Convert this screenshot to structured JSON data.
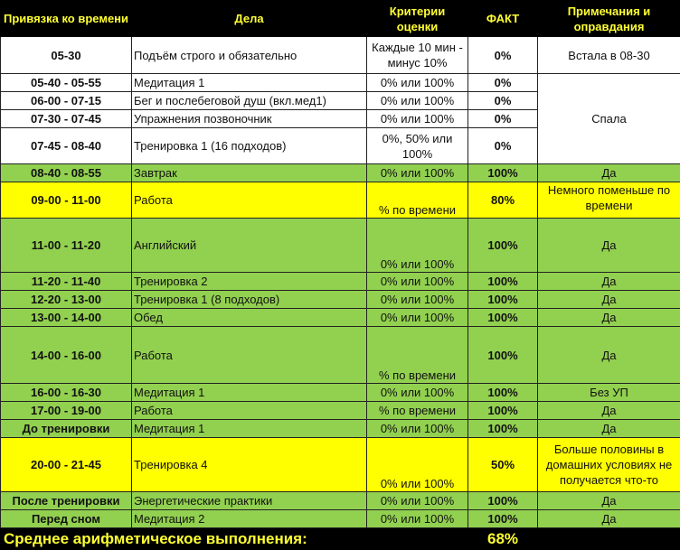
{
  "headers": {
    "time": "Привязка ко времени",
    "task": "Дела",
    "criteria": "Критерии оценки",
    "fact": "ФАКТ",
    "note": "Примечания и оправдания"
  },
  "colors": {
    "header_bg": "#000000",
    "header_text": "#ffff33",
    "green": "#92d050",
    "yellow": "#ffff00",
    "white": "#ffffff"
  },
  "rows": [
    {
      "time": "05-30",
      "task": "Подъём строго и обязательно",
      "criteria": "Каждые 10 мин - минус 10%",
      "fact": "0%",
      "note": "Встала в 08-30",
      "color": "white"
    },
    {
      "time": "05-40 - 05-55",
      "task": "Медитация 1",
      "criteria": "0% или 100%",
      "fact": "0%",
      "note": "Спала",
      "color": "white"
    },
    {
      "time": "06-00 - 07-15",
      "task": "Бег и послебеговой душ (вкл.мед1)",
      "criteria": "0% или 100%",
      "fact": "0%",
      "note": "",
      "color": "white"
    },
    {
      "time": "07-30 - 07-45",
      "task": "Упражнения позвоночник",
      "criteria": "0% или 100%",
      "fact": "0%",
      "note": "",
      "color": "white"
    },
    {
      "time": "07-45 - 08-40",
      "task": "Тренировка 1 (16 подходов)",
      "criteria": "0%, 50% или 100%",
      "fact": "0%",
      "note": "",
      "color": "white"
    },
    {
      "time": "08-40 - 08-55",
      "task": "Завтрак",
      "criteria": "0% или 100%",
      "fact": "100%",
      "note": "Да",
      "color": "green"
    },
    {
      "time": "09-00 - 11-00",
      "task": "Работа",
      "criteria": "% по времени",
      "fact": "80%",
      "note": "Немного поменьше по времени",
      "color": "yellow"
    },
    {
      "time": "11-00 - 11-20",
      "task": "Английский",
      "criteria": "0% или 100%",
      "fact": "100%",
      "note": "Да",
      "color": "green"
    },
    {
      "time": "11-20 - 11-40",
      "task": "Тренировка 2",
      "criteria": "0% или 100%",
      "fact": "100%",
      "note": "Да",
      "color": "green"
    },
    {
      "time": "12-20 - 13-00",
      "task": "Тренировка 1 (8 подходов)",
      "criteria": "0% или 100%",
      "fact": "100%",
      "note": "Да",
      "color": "green"
    },
    {
      "time": "13-00 - 14-00",
      "task": "Обед",
      "criteria": "0% или 100%",
      "fact": "100%",
      "note": "Да",
      "color": "green"
    },
    {
      "time": "14-00 - 16-00",
      "task": "Работа",
      "criteria": "% по времени",
      "fact": "100%",
      "note": "Да",
      "color": "green"
    },
    {
      "time": "16-00 - 16-30",
      "task": "Медитация 1",
      "criteria": "0% или 100%",
      "fact": "100%",
      "note": "Без УП",
      "color": "green"
    },
    {
      "time": "17-00 - 19-00",
      "task": "Работа",
      "criteria": "% по времени",
      "fact": "100%",
      "note": "Да",
      "color": "green"
    },
    {
      "time": "До тренировки",
      "task": "Медитация 1",
      "criteria": "0% или 100%",
      "fact": "100%",
      "note": "Да",
      "color": "green"
    },
    {
      "time": "20-00 - 21-45",
      "task": "Тренировка 4",
      "criteria": "0% или 100%",
      "fact": "50%",
      "note": "Больше половины в домашних условиях не получается что-то",
      "color": "yellow"
    },
    {
      "time": "После тренировки",
      "task": "Энергетические практики",
      "criteria": "0% или 100%",
      "fact": "100%",
      "note": "Да",
      "color": "green"
    },
    {
      "time": "Перед сном",
      "task": "Медитация 2",
      "criteria": "0% или 100%",
      "fact": "100%",
      "note": "Да",
      "color": "green"
    }
  ],
  "footer": {
    "label": "Среднее арифметическое выполнения:",
    "value": "68%"
  }
}
